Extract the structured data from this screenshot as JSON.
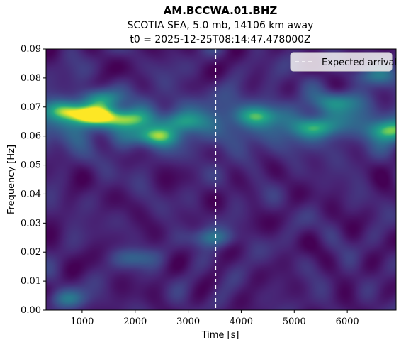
{
  "chart_data": {
    "type": "heatmap",
    "title": "AM.BCCWA.01.BHZ",
    "subtitle_line1": "SCOTIA SEA, 5.0 mb, 14106 km away",
    "subtitle_line2": "t0 = 2025-12-25T08:14:47.478000Z",
    "xlabel": "Time [s]",
    "ylabel": "Frequency [Hz]",
    "xlim": [
      320,
      6920
    ],
    "ylim": [
      0.0,
      0.09
    ],
    "x_ticks": [
      1000,
      2000,
      3000,
      4000,
      5000,
      6000
    ],
    "x_tick_labels": [
      "1000",
      "2000",
      "3000",
      "4000",
      "5000",
      "6000"
    ],
    "y_ticks": [
      0.0,
      0.01,
      0.02,
      0.03,
      0.04,
      0.05,
      0.06,
      0.07,
      0.08,
      0.09
    ],
    "y_tick_labels": [
      "0.00",
      "0.01",
      "0.02",
      "0.03",
      "0.04",
      "0.05",
      "0.06",
      "0.07",
      "0.08",
      "0.09"
    ],
    "colormap": "viridis",
    "grid": false,
    "legend": {
      "position": "top-right",
      "entries": [
        "Expected arrival"
      ]
    },
    "expected_arrival_time": 3520,
    "arrival_line_color": "#ffffff",
    "hotspots": [
      {
        "time": 1150,
        "freq": 0.067,
        "intensity": 1.0
      },
      {
        "time": 700,
        "freq": 0.069,
        "intensity": 0.7
      },
      {
        "time": 1800,
        "freq": 0.066,
        "intensity": 0.75
      },
      {
        "time": 2350,
        "freq": 0.06,
        "intensity": 0.75
      },
      {
        "time": 1350,
        "freq": 0.073,
        "intensity": 0.5
      },
      {
        "time": 2900,
        "freq": 0.065,
        "intensity": 0.45
      },
      {
        "time": 4300,
        "freq": 0.067,
        "intensity": 0.55
      },
      {
        "time": 5400,
        "freq": 0.063,
        "intensity": 0.6
      },
      {
        "time": 6800,
        "freq": 0.062,
        "intensity": 0.6
      },
      {
        "time": 5800,
        "freq": 0.072,
        "intensity": 0.45
      },
      {
        "time": 6500,
        "freq": 0.081,
        "intensity": 0.4
      },
      {
        "time": 3450,
        "freq": 0.025,
        "intensity": 0.45
      },
      {
        "time": 700,
        "freq": 0.004,
        "intensity": 0.4
      },
      {
        "time": 2000,
        "freq": 0.018,
        "intensity": 0.35
      }
    ]
  }
}
